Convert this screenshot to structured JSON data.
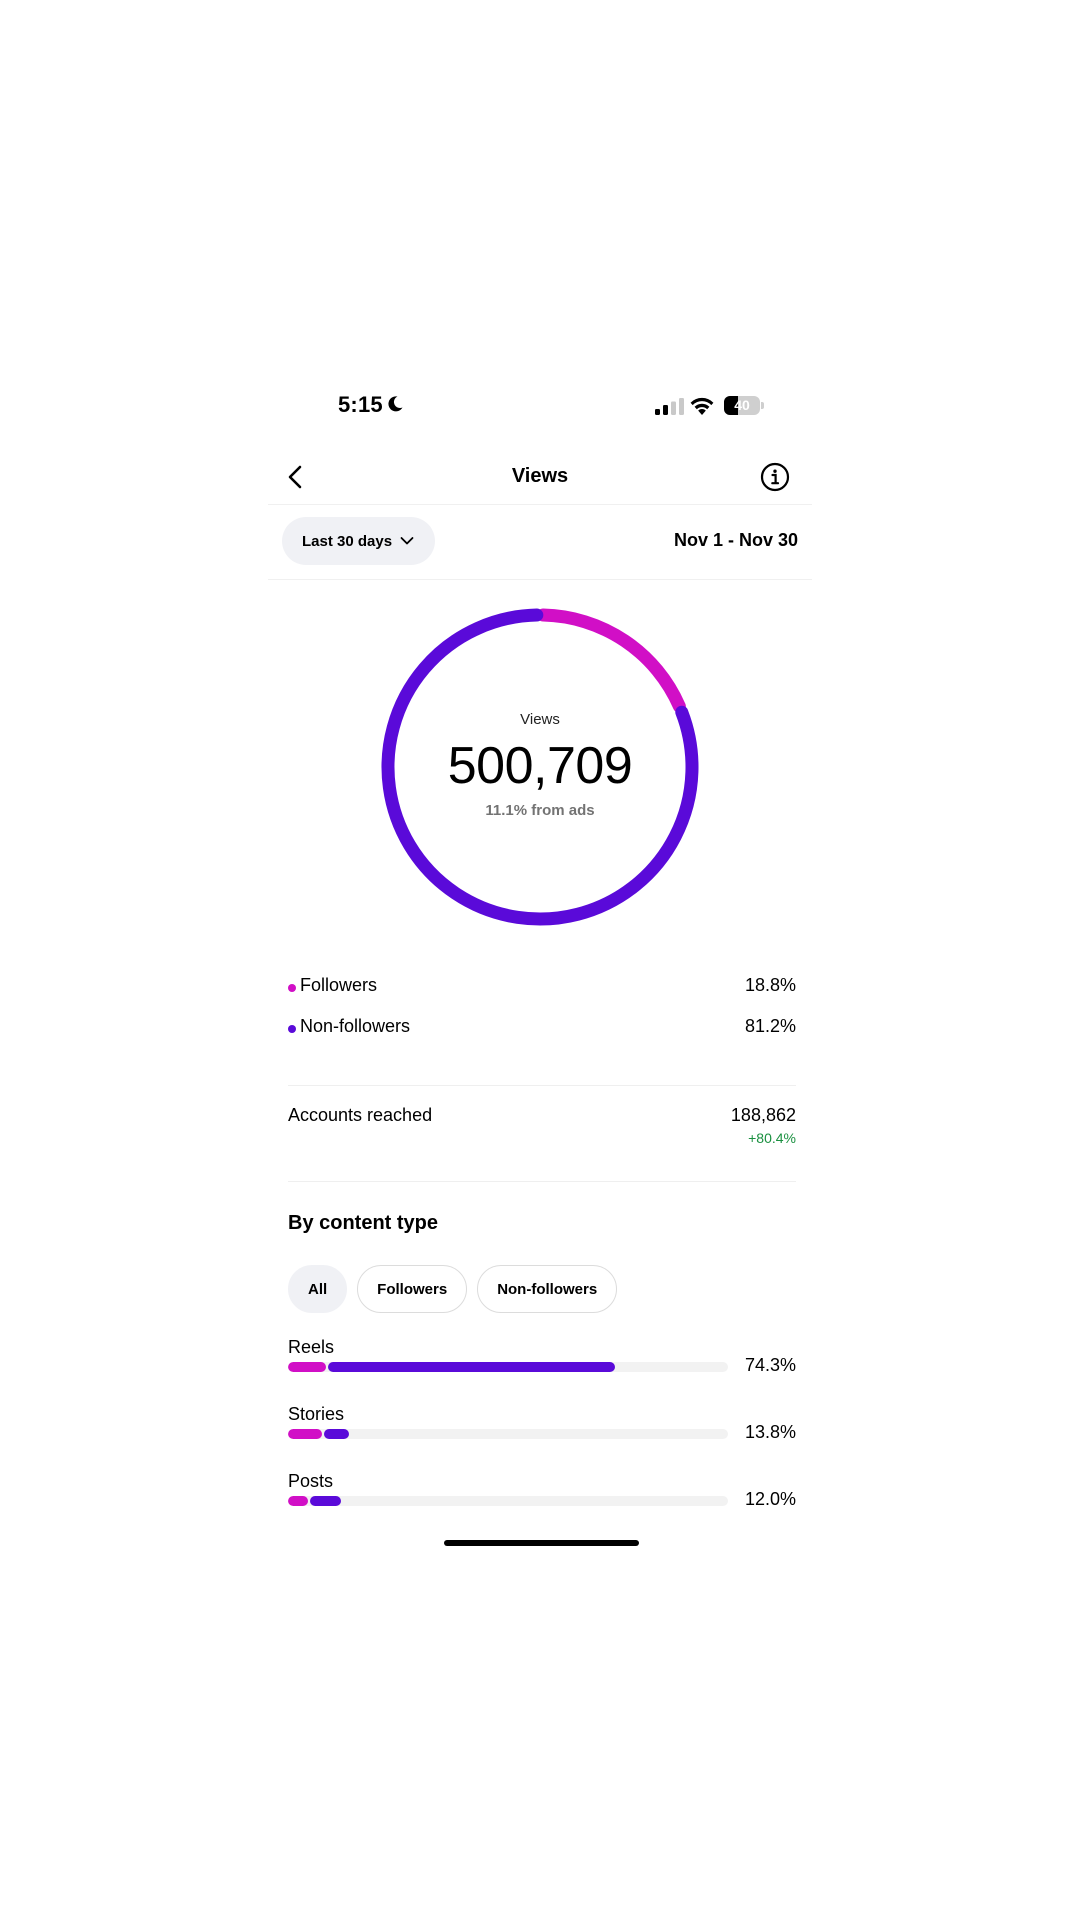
{
  "status_bar": {
    "time": "5:15",
    "battery_level": "40",
    "battery_fraction": 0.4,
    "icons": [
      "moon-icon",
      "signal-icon",
      "wifi-icon",
      "battery-icon"
    ]
  },
  "header": {
    "title": "Views",
    "back_icon": "chevron-left-icon",
    "info_icon": "info-icon"
  },
  "filter": {
    "range_label": "Last 30 days",
    "date_range": "Nov 1 - Nov 30"
  },
  "summary": {
    "label": "Views",
    "value": "500,709",
    "ads_note": "11.1% from ads"
  },
  "colors": {
    "followers": "#d10fc6",
    "non_followers": "#5a0ad9",
    "positive": "#1a9040"
  },
  "chart_data": {
    "type": "pie",
    "series": [
      {
        "name": "Followers",
        "value": 18.8
      },
      {
        "name": "Non-followers",
        "value": 81.2
      }
    ]
  },
  "legend": [
    {
      "label": "Followers",
      "value": "18.8%"
    },
    {
      "label": "Non-followers",
      "value": "81.2%"
    }
  ],
  "reach": {
    "label": "Accounts reached",
    "value": "188,862",
    "change": "+80.4%"
  },
  "content_type": {
    "title": "By content type",
    "chips": [
      "All",
      "Followers",
      "Non-followers"
    ],
    "active_chip": "All",
    "rows": [
      {
        "label": "Reels",
        "value": "74.3%",
        "total": 74.3,
        "followers": 8.6
      },
      {
        "label": "Stories",
        "value": "13.8%",
        "total": 13.8,
        "followers": 7.8
      },
      {
        "label": "Posts",
        "value": "12.0%",
        "total": 12.0,
        "followers": 4.6
      }
    ]
  }
}
